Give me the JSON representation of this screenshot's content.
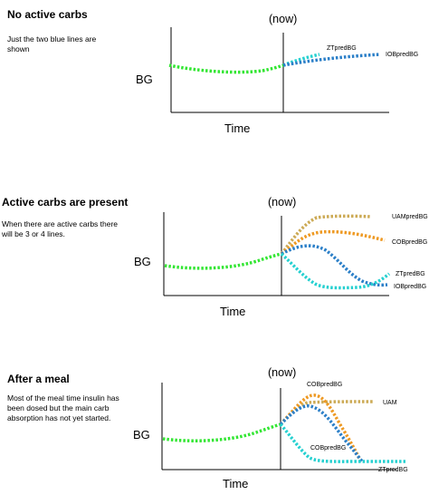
{
  "colors": {
    "bg_curve": "#33e633",
    "iob": "#2b7fc8",
    "zt": "#25d0d0",
    "cob": "#ee9922",
    "uam": "#ccaa55",
    "axis": "#000000"
  },
  "panels": [
    {
      "title": "No active carbs",
      "description": "Just the two blue lines are shown",
      "y_label": "BG",
      "x_label": "Time",
      "now_label": "(now)",
      "line_labels": [
        "ZTpredBG",
        "IOBpredBG"
      ]
    },
    {
      "title": "Active carbs are present",
      "description": "When there are active carbs there will be 3 or 4 lines.",
      "y_label": "BG",
      "x_label": "Time",
      "now_label": "(now)",
      "line_labels": [
        "UAMpredBG",
        "COBpredBG",
        "ZTpredBG",
        "IOBpredBG"
      ]
    },
    {
      "title": "After a meal",
      "description": "Most of the meal time insulin has been dosed but the main carb absorption has not yet started.",
      "y_label": "BG",
      "x_label": "Time",
      "now_label": "(now)",
      "line_labels": [
        "COBpredBG",
        "UAM",
        "COBpredBG",
        "ZTpredBG"
      ]
    }
  ]
}
